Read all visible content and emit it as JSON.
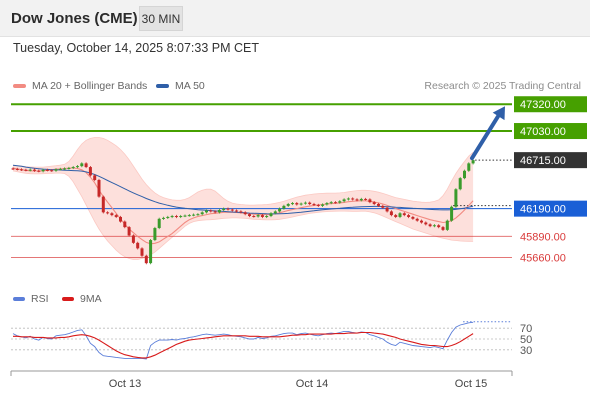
{
  "header": {
    "instrument": "Dow Jones (CME)",
    "timeframe": "30 MIN"
  },
  "timestamp": "Tuesday, October 14, 2025 8:07:33 PM CET",
  "legend": [
    {
      "label": "MA 20 + Bollinger Bands",
      "color": "#f28b82"
    },
    {
      "label": "MA 50",
      "color": "#2f5fa8"
    }
  ],
  "credit": "Research © 2025 Trading Central",
  "colors": {
    "target": "#46a000",
    "pivot": "#1a5fd6",
    "support": "#d93b3b",
    "current": "#333333",
    "arrow": "#2f5fa8",
    "candle_up": "#3a9b2c",
    "candle_down": "#c62828",
    "band_fill": "#fde0dc"
  },
  "chart_data": [
    {
      "type": "candlestick",
      "x_ticks": [
        "Oct 13",
        "Oct 14",
        "Oct 15"
      ],
      "ylim": [
        45580,
        47420
      ],
      "current_price": 46715.0,
      "levels": [
        {
          "value": 47320.0,
          "label": "47320.00",
          "kind": "target"
        },
        {
          "value": 47030.0,
          "label": "47030.00",
          "kind": "target"
        },
        {
          "value": 46715.0,
          "label": "46715.00",
          "kind": "current"
        },
        {
          "value": 46190.0,
          "label": "46190.00",
          "kind": "pivot"
        },
        {
          "value": 45890.0,
          "label": "45890.00",
          "kind": "support"
        },
        {
          "value": 45660.0,
          "label": "45660.00",
          "kind": "support"
        }
      ],
      "close": [
        46620,
        46615,
        46610,
        46605,
        46612,
        46600,
        46595,
        46610,
        46605,
        46600,
        46615,
        46620,
        46625,
        46630,
        46640,
        46650,
        46680,
        46640,
        46550,
        46500,
        46320,
        46150,
        46140,
        46120,
        46100,
        46050,
        45990,
        45900,
        45820,
        45760,
        45680,
        45600,
        45850,
        45980,
        46080,
        46090,
        46100,
        46110,
        46100,
        46110,
        46115,
        46120,
        46125,
        46130,
        46150,
        46170,
        46160,
        46150,
        46175,
        46190,
        46180,
        46170,
        46160,
        46150,
        46130,
        46110,
        46105,
        46120,
        46100,
        46110,
        46140,
        46160,
        46190,
        46220,
        46240,
        46250,
        46235,
        46245,
        46255,
        46240,
        46230,
        46220,
        46235,
        46250,
        46260,
        46255,
        46270,
        46290,
        46300,
        46290,
        46280,
        46295,
        46290,
        46260,
        46240,
        46220,
        46200,
        46160,
        46120,
        46100,
        46140,
        46120,
        46100,
        46080,
        46060,
        46040,
        46020,
        46000,
        46010,
        45990,
        45960,
        46060,
        46210,
        46400,
        46520,
        46600,
        46680,
        46715
      ],
      "ma20": [
        46630,
        46620,
        46612,
        46605,
        46600,
        46598,
        46598,
        46600,
        46605,
        46610,
        46618,
        46620,
        46625,
        46630,
        46630,
        46625,
        46610,
        46580,
        46530,
        46470,
        46390,
        46320,
        46260,
        46200,
        46140,
        46080,
        46020,
        45970,
        45930,
        45890,
        45855,
        45825,
        45810,
        45815,
        45830,
        45860,
        45890,
        45920,
        45960,
        46000,
        46040,
        46070,
        46090,
        46105,
        46115,
        46125,
        46135,
        46140,
        46145,
        46150,
        46150,
        46150,
        46148,
        46145,
        46140,
        46135,
        46130,
        46128,
        46125,
        46125,
        46128,
        46135,
        46145,
        46158,
        46170,
        46180,
        46190,
        46200,
        46210,
        46218,
        46225,
        46230,
        46235,
        46240,
        46245,
        46248,
        46252,
        46258,
        46265,
        46270,
        46273,
        46275,
        46275,
        46270,
        46262,
        46252,
        46240,
        46225,
        46208,
        46190,
        46175,
        46160,
        46145,
        46130,
        46115,
        46100,
        46085,
        46070,
        46060,
        46050,
        46040,
        46045,
        46060,
        46090,
        46130,
        46175,
        46225,
        46275
      ],
      "ma50": [
        46660,
        46655,
        46648,
        46640,
        46633,
        46627,
        46622,
        46618,
        46615,
        46612,
        46610,
        46608,
        46606,
        46604,
        46602,
        46600,
        46596,
        46588,
        46575,
        46560,
        46540,
        46518,
        46495,
        46472,
        46450,
        46428,
        46405,
        46382,
        46360,
        46340,
        46320,
        46300,
        46282,
        46265,
        46250,
        46238,
        46226,
        46216,
        46207,
        46200,
        46194,
        46188,
        46183,
        46179,
        46175,
        46172,
        46169,
        46166,
        46163,
        46160,
        46157,
        46154,
        46151,
        46148,
        46145,
        46142,
        46140,
        46138,
        46136,
        46134,
        46133,
        46133,
        46134,
        46136,
        46139,
        46143,
        46147,
        46152,
        46157,
        46162,
        46167,
        46172,
        46177,
        46182,
        46186,
        46190,
        46194,
        46198,
        46202,
        46205,
        46208,
        46210,
        46212,
        46213,
        46214,
        46214,
        46213,
        46211,
        46209,
        46206,
        46203,
        46200,
        46197,
        46194,
        46191,
        46188,
        46185,
        46182,
        46180,
        46178,
        46176,
        46176,
        46178,
        46182,
        46188,
        46196,
        46206,
        46218
      ],
      "bb_upper": [
        46660,
        46655,
        46650,
        46645,
        46642,
        46640,
        46640,
        46640,
        46645,
        46650,
        46655,
        46660,
        46670,
        46700,
        46760,
        46830,
        46890,
        46930,
        46950,
        46960,
        46960,
        46950,
        46930,
        46900,
        46870,
        46830,
        46780,
        46720,
        46650,
        46580,
        46510,
        46450,
        46400,
        46360,
        46330,
        46310,
        46295,
        46285,
        46280,
        46280,
        46290,
        46310,
        46340,
        46370,
        46390,
        46400,
        46400,
        46380,
        46340,
        46300,
        46270,
        46250,
        46240,
        46235,
        46230,
        46228,
        46228,
        46230,
        46232,
        46235,
        46240,
        46248,
        46258,
        46270,
        46285,
        46300,
        46315,
        46325,
        46335,
        46342,
        46348,
        46352,
        46355,
        46357,
        46358,
        46358,
        46360,
        46365,
        46372,
        46380,
        46385,
        46388,
        46388,
        46385,
        46378,
        46368,
        46355,
        46340,
        46325,
        46310,
        46300,
        46290,
        46280,
        46272,
        46265,
        46260,
        46258,
        46260,
        46268,
        46285,
        46330,
        46400,
        46490,
        46570,
        46640,
        46700,
        46760,
        46800
      ],
      "bb_lower": [
        46600,
        46590,
        46580,
        46572,
        46568,
        46566,
        46566,
        46568,
        46570,
        46572,
        46575,
        46575,
        46570,
        46540,
        46480,
        46400,
        46320,
        46230,
        46140,
        46050,
        45970,
        45900,
        45840,
        45790,
        45740,
        45700,
        45670,
        45650,
        45640,
        45640,
        45650,
        45665,
        45690,
        45720,
        45760,
        45800,
        45840,
        45880,
        45920,
        45960,
        46000,
        46030,
        46050,
        46060,
        46065,
        46068,
        46070,
        46075,
        46080,
        46085,
        46088,
        46090,
        46090,
        46088,
        46085,
        46080,
        46075,
        46072,
        46070,
        46068,
        46068,
        46070,
        46075,
        46082,
        46090,
        46100,
        46110,
        46120,
        46130,
        46138,
        46145,
        46150,
        46155,
        46158,
        46160,
        46162,
        46163,
        46163,
        46162,
        46160,
        46160,
        46162,
        46162,
        46155,
        46145,
        46130,
        46110,
        46090,
        46070,
        46050,
        46030,
        46010,
        45990,
        45970,
        45955,
        45940,
        45925,
        45910,
        45895,
        45880,
        45870,
        45860,
        45850,
        45845,
        45840,
        45838,
        45836,
        45835
      ],
      "projection": {
        "from": 46715.0,
        "to": 47320.0
      }
    },
    {
      "type": "line",
      "name": "RSI",
      "ylim": [
        0,
        100
      ],
      "y_ticks": [
        "70",
        "50",
        "30"
      ],
      "series": [
        {
          "name": "RSI",
          "color": "#5b7ed9",
          "values": [
            60,
            56,
            54,
            52,
            55,
            50,
            48,
            53,
            51,
            50,
            56,
            57,
            58,
            60,
            63,
            66,
            67,
            56,
            42,
            36,
            25,
            19,
            18,
            17,
            16,
            15,
            14,
            14,
            14,
            14,
            14,
            13,
            38,
            44,
            48,
            48,
            48,
            49,
            48,
            50,
            51,
            53,
            54,
            56,
            58,
            59,
            58,
            57,
            58,
            59,
            58,
            56,
            55,
            54,
            52,
            50,
            50,
            53,
            51,
            52,
            55,
            56,
            58,
            60,
            61,
            61,
            58,
            60,
            61,
            59,
            57,
            56,
            58,
            60,
            61,
            60,
            62,
            64,
            64,
            62,
            61,
            63,
            62,
            58,
            56,
            53,
            50,
            44,
            40,
            38,
            44,
            42,
            40,
            38,
            37,
            36,
            35,
            34,
            36,
            34,
            32,
            48,
            62,
            72,
            76,
            78,
            80,
            81
          ]
        },
        {
          "name": "9MA",
          "color": "#d81b1b",
          "values": [
            55,
            55,
            54,
            54,
            54,
            53,
            53,
            53,
            52,
            52,
            52,
            53,
            53,
            54,
            56,
            57,
            58,
            57,
            55,
            52,
            48,
            43,
            38,
            33,
            28,
            24,
            21,
            19,
            17,
            16,
            15,
            15,
            17,
            20,
            24,
            28,
            32,
            36,
            40,
            43,
            46,
            48,
            49,
            50,
            51,
            52,
            53,
            54,
            55,
            56,
            56,
            56,
            56,
            56,
            56,
            55,
            55,
            55,
            54,
            54,
            54,
            54,
            54,
            55,
            56,
            57,
            57,
            58,
            58,
            59,
            59,
            59,
            59,
            59,
            59,
            60,
            60,
            60,
            61,
            61,
            61,
            62,
            62,
            62,
            61,
            60,
            59,
            57,
            55,
            53,
            50,
            48,
            46,
            44,
            42,
            40,
            39,
            38,
            38,
            37,
            36,
            36,
            38,
            41,
            45,
            50,
            55,
            60
          ]
        }
      ],
      "level_100": 82
    }
  ]
}
